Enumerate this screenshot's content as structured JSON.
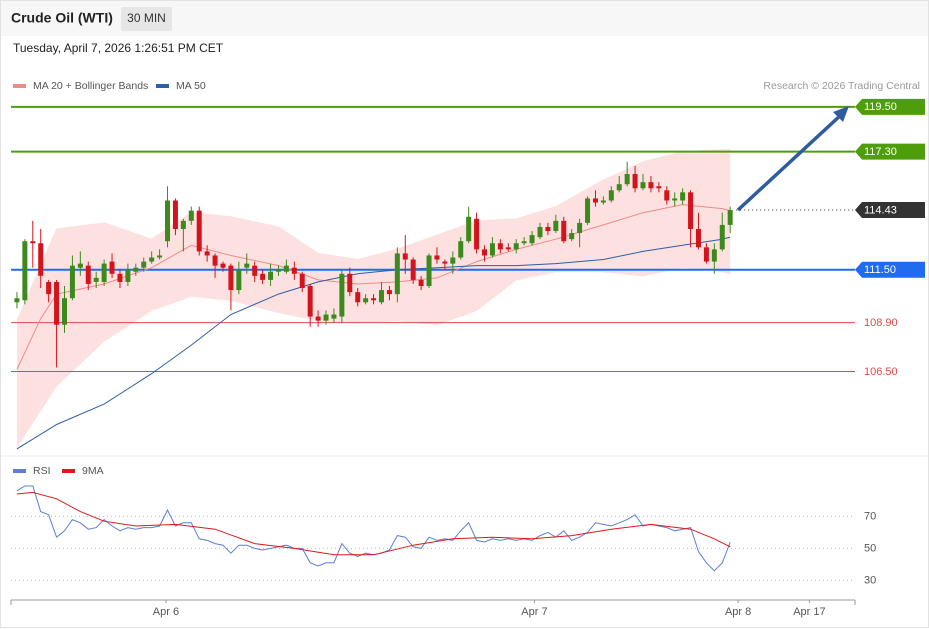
{
  "header": {
    "title": "Crude Oil (WTI)",
    "interval": "30 MIN",
    "timestamp": "Tuesday, April 7, 2026 1:26:51 PM CET"
  },
  "chart_data": [
    {
      "type": "candlestick",
      "credit": "Research © 2026 Trading Central",
      "up_color": "#3c8a1c",
      "down_color": "#d4141c",
      "open": [
        109.9,
        110.0,
        112.9,
        112.8,
        110.9,
        110.9,
        108.8,
        110.1,
        111.6,
        111.7,
        110.9,
        110.9,
        111.9,
        111.3,
        110.9,
        111.4,
        111.6,
        111.9,
        112.1,
        112.9,
        114.9,
        113.5,
        113.9,
        114.4,
        112.4,
        112.2,
        111.8,
        111.7,
        110.5,
        111.6,
        111.7,
        111.3,
        111.0,
        111.4,
        111.4,
        111.6,
        111.3,
        110.7,
        109.2,
        109.0,
        109.1,
        109.2,
        111.3,
        110.4,
        109.9,
        110.1,
        109.9,
        110.5,
        110.3,
        112.3,
        112.0,
        111.0,
        110.7,
        112.2,
        111.9,
        111.8,
        112.1,
        112.9,
        114.0,
        112.5,
        112.2,
        112.8,
        112.6,
        112.5,
        112.8,
        112.8,
        113.1,
        113.6,
        113.4,
        113.9,
        113.0,
        113.3,
        113.8,
        115.0,
        114.8,
        114.9,
        115.4,
        115.7,
        116.2,
        115.5,
        115.8,
        115.6,
        115.4,
        114.9,
        114.9,
        115.3,
        113.5,
        112.6,
        111.9,
        112.5,
        113.7
      ],
      "high": [
        110.4,
        113.0,
        113.9,
        113.5,
        111.0,
        111.0,
        110.7,
        112.2,
        112.4,
        111.9,
        111.4,
        112.0,
        112.3,
        111.5,
        111.8,
        111.8,
        112.1,
        112.4,
        112.5,
        115.6,
        115.0,
        114.0,
        114.6,
        114.6,
        112.7,
        112.3,
        111.9,
        111.8,
        111.9,
        112.3,
        111.9,
        111.5,
        111.8,
        111.7,
        112.0,
        111.9,
        111.4,
        110.8,
        109.5,
        109.5,
        109.6,
        111.5,
        111.6,
        110.6,
        110.3,
        110.3,
        110.9,
        110.7,
        112.6,
        113.2,
        112.1,
        111.2,
        112.3,
        112.6,
        112.0,
        112.4,
        113.1,
        114.6,
        114.3,
        112.7,
        113.1,
        113.0,
        112.8,
        113.0,
        113.1,
        113.4,
        113.8,
        113.8,
        114.2,
        114.1,
        113.5,
        114.0,
        115.1,
        115.4,
        115.1,
        115.6,
        116.1,
        116.8,
        116.6,
        116.2,
        116.1,
        115.8,
        115.6,
        115.3,
        115.5,
        115.4,
        114.3,
        112.8,
        112.8,
        114.3,
        114.6
      ],
      "low": [
        109.6,
        109.8,
        111.6,
        110.6,
        109.9,
        106.7,
        108.4,
        110.0,
        111.2,
        110.5,
        110.6,
        110.7,
        111.1,
        110.6,
        110.7,
        111.2,
        111.4,
        111.8,
        112.0,
        112.6,
        113.2,
        112.4,
        113.7,
        112.2,
        111.9,
        111.1,
        111.4,
        109.5,
        110.3,
        111.3,
        110.9,
        110.8,
        110.7,
        111.2,
        111.3,
        111.0,
        110.4,
        108.7,
        108.7,
        108.8,
        108.9,
        108.9,
        110.2,
        109.7,
        109.8,
        109.8,
        109.8,
        110.0,
        109.9,
        111.3,
        110.8,
        110.5,
        110.6,
        111.8,
        111.5,
        111.3,
        112.0,
        112.8,
        112.3,
        111.9,
        112.1,
        112.3,
        112.4,
        112.3,
        112.7,
        112.7,
        113.0,
        113.2,
        113.3,
        112.8,
        112.9,
        112.6,
        113.7,
        114.6,
        114.7,
        114.8,
        115.3,
        115.6,
        115.3,
        115.4,
        115.3,
        115.3,
        114.7,
        114.6,
        114.7,
        112.6,
        112.5,
        111.8,
        111.3,
        112.4,
        113.3
      ],
      "close": [
        110.1,
        112.9,
        112.8,
        111.2,
        110.3,
        108.8,
        110.1,
        111.7,
        111.8,
        110.8,
        111.1,
        111.8,
        111.3,
        110.9,
        111.5,
        111.6,
        111.9,
        112.1,
        112.2,
        114.9,
        113.5,
        113.9,
        114.4,
        112.4,
        112.2,
        111.7,
        111.6,
        110.5,
        111.5,
        111.8,
        111.2,
        111.0,
        111.4,
        111.5,
        111.7,
        111.3,
        110.6,
        109.2,
        109.0,
        109.3,
        109.3,
        111.3,
        110.4,
        109.9,
        110.1,
        110.0,
        110.5,
        110.3,
        112.3,
        112.0,
        111.0,
        110.7,
        112.2,
        112.0,
        111.8,
        112.1,
        112.9,
        114.1,
        112.5,
        112.2,
        112.8,
        112.5,
        112.5,
        112.8,
        112.9,
        113.2,
        113.6,
        113.4,
        113.9,
        112.9,
        113.3,
        113.8,
        115.0,
        114.8,
        114.9,
        115.4,
        115.7,
        116.2,
        115.5,
        115.8,
        115.5,
        115.5,
        114.9,
        115.0,
        115.3,
        113.5,
        112.6,
        111.9,
        112.5,
        113.7,
        114.43
      ],
      "series": [
        {
          "name": "MA 20 + Bollinger Bands",
          "color": "#f08a8a",
          "x": [
            0,
            3,
            5,
            11,
            17,
            22,
            27,
            33,
            38,
            43,
            48,
            53,
            58,
            63,
            68,
            74,
            79,
            84,
            89,
            90
          ],
          "values": [
            106.6,
            109.1,
            110.3,
            110.8,
            111.6,
            112.7,
            112.2,
            111.7,
            111.0,
            110.8,
            110.9,
            111.1,
            111.9,
            112.5,
            113.0,
            113.7,
            114.3,
            114.7,
            114.5,
            114.4
          ],
          "band": {
            "color": "#fde0e0",
            "x": [
              0,
              5,
              11,
              17,
              22,
              27,
              33,
              38,
              43,
              48,
              53,
              58,
              63,
              68,
              74,
              79,
              84,
              89,
              90
            ],
            "upper": [
              109.0,
              113.5,
              113.8,
              113.0,
              114.3,
              114.1,
              113.6,
              112.3,
              112.0,
              112.5,
              113.2,
              113.9,
              114.0,
              114.6,
              115.9,
              116.8,
              117.3,
              117.4,
              117.4
            ],
            "lower": [
              102.8,
              105.8,
              108.0,
              109.5,
              110.2,
              110.0,
              109.4,
              109.0,
              108.9,
              109.0,
              108.8,
              109.5,
              111.0,
              111.4,
              111.4,
              111.2,
              111.6,
              111.4,
              111.3
            ]
          }
        },
        {
          "name": "MA 50",
          "color": "#2d5fa5",
          "x": [
            0,
            5,
            11,
            17,
            22,
            27,
            33,
            38,
            43,
            48,
            53,
            58,
            63,
            68,
            74,
            79,
            84,
            89,
            90
          ],
          "values": [
            102.7,
            103.9,
            104.9,
            106.4,
            107.8,
            109.3,
            110.3,
            110.9,
            111.3,
            111.5,
            111.6,
            111.7,
            111.7,
            111.8,
            112.0,
            112.4,
            112.7,
            113.0,
            113.1
          ]
        }
      ],
      "levels": [
        {
          "value": 119.5,
          "label": "119.50",
          "color": "#4e9e0c",
          "line": "solid",
          "boxed": true
        },
        {
          "value": 117.3,
          "label": "117.30",
          "color": "#4e9e0c",
          "line": "solid",
          "boxed": true
        },
        {
          "value": 114.43,
          "color": "#333333",
          "line": "dotted",
          "boxed": true
        },
        {
          "value": 111.5,
          "label": "111.50",
          "color": "#1f6cf0",
          "line": "solid",
          "boxed": true
        },
        {
          "value": 108.9,
          "label": "108.90",
          "color": "#e04848",
          "line": "thin",
          "boxed": false
        },
        {
          "value": 106.5,
          "label": "106.50",
          "color": "#e04848",
          "line": "thin",
          "boxed": false
        }
      ],
      "xlim": [
        -0.75,
        105.75
      ],
      "ylim": [
        102.4,
        121.8
      ]
    },
    {
      "type": "line",
      "series": [
        {
          "name": "RSI",
          "color": "#5b7fd6",
          "values": [
            86,
            89,
            89,
            73,
            71,
            57,
            61,
            68,
            66,
            62,
            63,
            68,
            64,
            61,
            63,
            62,
            63,
            63,
            64,
            74,
            64,
            66,
            66,
            56,
            55,
            53,
            52,
            47,
            52,
            52,
            50,
            49,
            50,
            51,
            52,
            50,
            50,
            41,
            39,
            41,
            41,
            53,
            47,
            45,
            47,
            46,
            47,
            49,
            58,
            57,
            51,
            50,
            57,
            55,
            56,
            55,
            61,
            66,
            55,
            54,
            56,
            55,
            56,
            55,
            56,
            55,
            58,
            60,
            57,
            61,
            55,
            57,
            60,
            66,
            65,
            64,
            66,
            68,
            71,
            64,
            65,
            64,
            63,
            61,
            62,
            63,
            48,
            41,
            36,
            41,
            54
          ]
        },
        {
          "name": "9MA",
          "color": "#e0181b",
          "x": [
            0,
            2,
            5,
            8,
            11,
            15,
            20,
            25,
            30,
            35,
            40,
            45,
            50,
            55,
            60,
            65,
            70,
            75,
            80,
            85,
            88,
            90
          ],
          "values": [
            84,
            85,
            81,
            73,
            67,
            64,
            65,
            62,
            53,
            50,
            46,
            46,
            52,
            56,
            57,
            56,
            58,
            62,
            65,
            62,
            56,
            51
          ]
        }
      ],
      "xlim": [
        -0.75,
        105.75
      ],
      "ylim": [
        19,
        94
      ],
      "yticks": [
        30,
        50,
        70
      ],
      "xticks": [
        {
          "value": 18.8,
          "label": "Apr 6"
        },
        {
          "value": 65.3,
          "label": "Apr 7"
        },
        {
          "value": 91,
          "label": "Apr 8"
        },
        {
          "value": 100,
          "label": "Apr 17"
        }
      ]
    }
  ]
}
